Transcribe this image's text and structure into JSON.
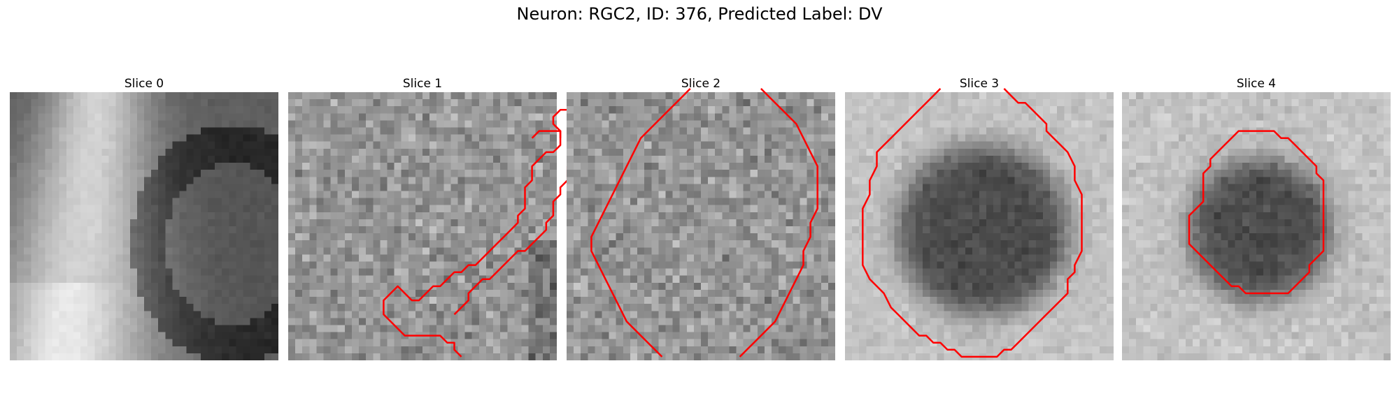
{
  "figure": {
    "title": "Neuron: RGC2, ID: 376, Predicted Label: DV"
  },
  "slices": [
    {
      "title": "Slice 0",
      "pattern": "bright-cell-left",
      "contours": []
    },
    {
      "title": "Slice 1",
      "pattern": "noisy",
      "contours": [
        [
          [
            23,
            31
          ],
          [
            24,
            30
          ],
          [
            25,
            29
          ],
          [
            25,
            28
          ],
          [
            26,
            27
          ],
          [
            27,
            26
          ],
          [
            28,
            26
          ],
          [
            29,
            25
          ],
          [
            30,
            24
          ],
          [
            31,
            23
          ],
          [
            32,
            22
          ],
          [
            33,
            22
          ],
          [
            34,
            21
          ],
          [
            35,
            20
          ],
          [
            36,
            19
          ],
          [
            36,
            18
          ],
          [
            37,
            17
          ],
          [
            37,
            16
          ],
          [
            37,
            15
          ],
          [
            38,
            14
          ],
          [
            38,
            13
          ],
          [
            39,
            12
          ],
          [
            39,
            11
          ],
          [
            39,
            10
          ],
          [
            40,
            9
          ],
          [
            40,
            8
          ],
          [
            40,
            7
          ],
          [
            41,
            6
          ],
          [
            41,
            5
          ],
          [
            41,
            4
          ],
          [
            40,
            3
          ],
          [
            39,
            2
          ],
          [
            38,
            2
          ],
          [
            37,
            3
          ],
          [
            37,
            4
          ],
          [
            38,
            5
          ],
          [
            38,
            6
          ],
          [
            38,
            7
          ],
          [
            37,
            8
          ],
          [
            36,
            8
          ],
          [
            35,
            9
          ],
          [
            34,
            10
          ],
          [
            34,
            11
          ],
          [
            34,
            12
          ],
          [
            33,
            13
          ],
          [
            33,
            14
          ],
          [
            33,
            15
          ],
          [
            33,
            16
          ],
          [
            32,
            17
          ],
          [
            32,
            18
          ],
          [
            31,
            19
          ],
          [
            30,
            20
          ],
          [
            29,
            21
          ],
          [
            28,
            22
          ],
          [
            27,
            23
          ],
          [
            26,
            24
          ],
          [
            25,
            24
          ],
          [
            24,
            25
          ],
          [
            23,
            25
          ],
          [
            22,
            26
          ],
          [
            21,
            27
          ],
          [
            20,
            27
          ],
          [
            19,
            28
          ],
          [
            18,
            29
          ],
          [
            17,
            29
          ],
          [
            16,
            28
          ],
          [
            15,
            27
          ],
          [
            14,
            28
          ],
          [
            13,
            29
          ],
          [
            13,
            30
          ],
          [
            13,
            31
          ],
          [
            14,
            32
          ],
          [
            15,
            33
          ],
          [
            16,
            34
          ],
          [
            17,
            34
          ],
          [
            18,
            34
          ],
          [
            19,
            34
          ],
          [
            20,
            34
          ],
          [
            21,
            34
          ],
          [
            22,
            35
          ],
          [
            23,
            35
          ],
          [
            23,
            36
          ],
          [
            24,
            37
          ]
        ],
        [
          [
            34,
            6
          ],
          [
            35,
            5
          ],
          [
            36,
            5
          ],
          [
            37,
            5
          ],
          [
            38,
            5
          ],
          [
            38,
            6
          ]
        ]
      ]
    },
    {
      "title": "Slice 2",
      "pattern": "noisy",
      "contours": [
        [
          [
            13,
            37
          ],
          [
            12,
            36
          ],
          [
            11,
            35
          ],
          [
            10,
            34
          ],
          [
            9,
            33
          ],
          [
            8,
            32
          ],
          [
            7,
            30
          ],
          [
            6,
            28
          ],
          [
            5,
            26
          ],
          [
            4,
            24
          ],
          [
            3,
            22
          ],
          [
            3,
            20
          ],
          [
            4,
            18
          ],
          [
            5,
            16
          ],
          [
            6,
            14
          ],
          [
            7,
            12
          ],
          [
            8,
            10
          ],
          [
            9,
            8
          ],
          [
            10,
            6
          ],
          [
            11,
            5
          ],
          [
            12,
            4
          ],
          [
            13,
            3
          ],
          [
            14,
            2
          ],
          [
            15,
            1
          ],
          [
            16,
            0
          ],
          [
            17,
            -1
          ]
        ],
        [
          [
            27,
            -1
          ],
          [
            28,
            0
          ],
          [
            29,
            1
          ],
          [
            30,
            2
          ],
          [
            31,
            3
          ],
          [
            32,
            4
          ],
          [
            33,
            6
          ],
          [
            34,
            8
          ],
          [
            35,
            10
          ],
          [
            35,
            12
          ],
          [
            35,
            14
          ],
          [
            35,
            16
          ],
          [
            34,
            18
          ],
          [
            34,
            20
          ],
          [
            33,
            22
          ],
          [
            33,
            24
          ],
          [
            32,
            26
          ],
          [
            31,
            28
          ],
          [
            30,
            30
          ],
          [
            29,
            32
          ],
          [
            28,
            33
          ],
          [
            27,
            34
          ],
          [
            26,
            35
          ],
          [
            25,
            36
          ],
          [
            24,
            37
          ]
        ]
      ]
    },
    {
      "title": "Slice 3",
      "pattern": "dark-disc",
      "center": [
        19,
        19
      ],
      "radius": 12,
      "contours": [
        [
          [
            13,
            -1
          ],
          [
            12,
            0
          ],
          [
            11,
            1
          ],
          [
            10,
            2
          ],
          [
            9,
            3
          ],
          [
            8,
            4
          ],
          [
            7,
            5
          ],
          [
            6,
            6
          ],
          [
            5,
            7
          ],
          [
            4,
            8
          ],
          [
            4,
            10
          ],
          [
            3,
            12
          ],
          [
            3,
            14
          ],
          [
            2,
            16
          ],
          [
            2,
            18
          ],
          [
            2,
            20
          ],
          [
            2,
            22
          ],
          [
            2,
            24
          ],
          [
            3,
            26
          ],
          [
            4,
            27
          ],
          [
            5,
            28
          ],
          [
            6,
            30
          ],
          [
            7,
            31
          ],
          [
            8,
            32
          ],
          [
            9,
            33
          ],
          [
            10,
            34
          ],
          [
            11,
            34
          ],
          [
            12,
            35
          ],
          [
            13,
            35
          ],
          [
            14,
            36
          ],
          [
            15,
            36
          ],
          [
            16,
            37
          ],
          [
            17,
            37
          ],
          [
            18,
            37
          ],
          [
            19,
            37
          ],
          [
            20,
            37
          ],
          [
            21,
            37
          ],
          [
            22,
            36
          ],
          [
            23,
            36
          ],
          [
            24,
            35
          ],
          [
            25,
            34
          ],
          [
            26,
            33
          ],
          [
            27,
            32
          ],
          [
            28,
            31
          ],
          [
            29,
            30
          ],
          [
            30,
            29
          ],
          [
            31,
            28
          ],
          [
            31,
            26
          ],
          [
            32,
            25
          ],
          [
            32,
            24
          ],
          [
            33,
            22
          ],
          [
            33,
            20
          ],
          [
            33,
            18
          ],
          [
            33,
            16
          ],
          [
            33,
            14
          ],
          [
            32,
            12
          ],
          [
            32,
            10
          ],
          [
            31,
            8
          ],
          [
            30,
            7
          ],
          [
            29,
            6
          ],
          [
            28,
            5
          ],
          [
            28,
            4
          ],
          [
            27,
            3
          ],
          [
            26,
            2
          ],
          [
            25,
            1
          ],
          [
            24,
            1
          ],
          [
            23,
            0
          ],
          [
            22,
            -1
          ]
        ]
      ]
    },
    {
      "title": "Slice 4",
      "pattern": "dark-disc",
      "center": [
        19,
        19
      ],
      "radius": 10,
      "contours": [
        [
          [
            15,
            6
          ],
          [
            16,
            5
          ],
          [
            17,
            5
          ],
          [
            18,
            5
          ],
          [
            19,
            5
          ],
          [
            20,
            5
          ],
          [
            21,
            5
          ],
          [
            22,
            6
          ],
          [
            23,
            6
          ],
          [
            24,
            7
          ],
          [
            25,
            8
          ],
          [
            26,
            9
          ],
          [
            27,
            10
          ],
          [
            27,
            11
          ],
          [
            28,
            12
          ],
          [
            28,
            14
          ],
          [
            28,
            16
          ],
          [
            28,
            18
          ],
          [
            28,
            20
          ],
          [
            28,
            22
          ],
          [
            27,
            23
          ],
          [
            26,
            24
          ],
          [
            26,
            25
          ],
          [
            25,
            26
          ],
          [
            24,
            27
          ],
          [
            23,
            28
          ],
          [
            22,
            28
          ],
          [
            21,
            28
          ],
          [
            20,
            28
          ],
          [
            19,
            28
          ],
          [
            18,
            28
          ],
          [
            17,
            28
          ],
          [
            16,
            27
          ],
          [
            15,
            27
          ],
          [
            14,
            26
          ],
          [
            13,
            25
          ],
          [
            12,
            24
          ],
          [
            11,
            23
          ],
          [
            10,
            22
          ],
          [
            9,
            21
          ],
          [
            9,
            19
          ],
          [
            9,
            17
          ],
          [
            10,
            16
          ],
          [
            11,
            15
          ],
          [
            11,
            13
          ],
          [
            11,
            11
          ],
          [
            12,
            10
          ],
          [
            12,
            9
          ],
          [
            13,
            8
          ],
          [
            14,
            7
          ],
          [
            15,
            6
          ]
        ]
      ]
    }
  ],
  "colors": {
    "contour": "#ff0000"
  },
  "grid_size": 38
}
